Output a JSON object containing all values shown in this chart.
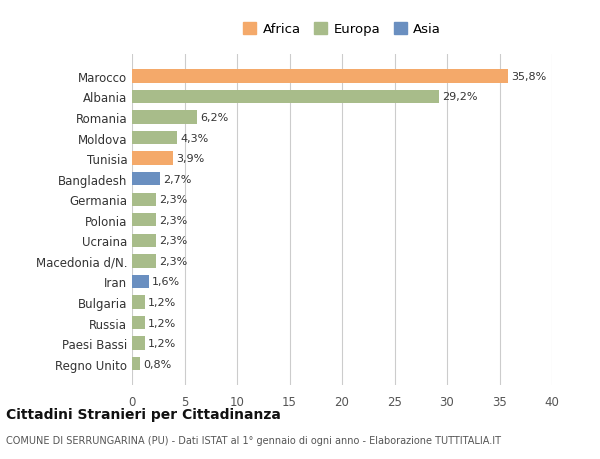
{
  "countries": [
    "Marocco",
    "Albania",
    "Romania",
    "Moldova",
    "Tunisia",
    "Bangladesh",
    "Germania",
    "Polonia",
    "Ucraina",
    "Macedonia d/N.",
    "Iran",
    "Bulgaria",
    "Russia",
    "Paesi Bassi",
    "Regno Unito"
  ],
  "values": [
    35.8,
    29.2,
    6.2,
    4.3,
    3.9,
    2.7,
    2.3,
    2.3,
    2.3,
    2.3,
    1.6,
    1.2,
    1.2,
    1.2,
    0.8
  ],
  "labels": [
    "35,8%",
    "29,2%",
    "6,2%",
    "4,3%",
    "3,9%",
    "2,7%",
    "2,3%",
    "2,3%",
    "2,3%",
    "2,3%",
    "1,6%",
    "1,2%",
    "1,2%",
    "1,2%",
    "0,8%"
  ],
  "continents": [
    "Africa",
    "Europa",
    "Europa",
    "Europa",
    "Africa",
    "Asia",
    "Europa",
    "Europa",
    "Europa",
    "Europa",
    "Asia",
    "Europa",
    "Europa",
    "Europa",
    "Europa"
  ],
  "colors": {
    "Africa": "#F4A96A",
    "Europa": "#A8BC8A",
    "Asia": "#6A8FC0"
  },
  "legend_labels": [
    "Africa",
    "Europa",
    "Asia"
  ],
  "title": "Cittadini Stranieri per Cittadinanza",
  "subtitle": "COMUNE DI SERRUNGARINA (PU) - Dati ISTAT al 1° gennaio di ogni anno - Elaborazione TUTTITALIA.IT",
  "xlim": [
    0,
    40
  ],
  "xticks": [
    0,
    5,
    10,
    15,
    20,
    25,
    30,
    35,
    40
  ],
  "background_color": "#ffffff",
  "grid_color": "#cccccc"
}
